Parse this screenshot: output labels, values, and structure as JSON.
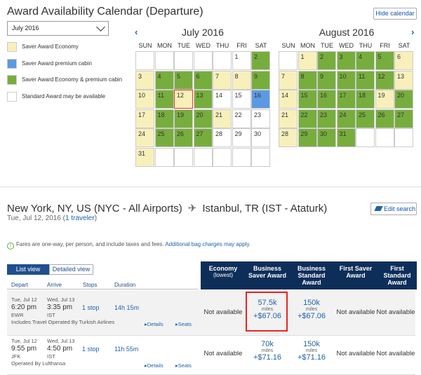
{
  "calendar": {
    "title": "Award Availability Calendar (Departure)",
    "hide_label": "Hide calendar",
    "month_select": "July 2016",
    "legend": [
      {
        "label": "Saver Award Economy",
        "color": "#f8f0bb"
      },
      {
        "label": "Saver Award premium cabin",
        "color": "#5b9ae3"
      },
      {
        "label": "Saver Award Economy & premium cabin",
        "color": "#77ad3d"
      },
      {
        "label": "Standard Award may be available",
        "color": "#ffffff"
      }
    ],
    "weekdays": [
      "SUN",
      "MON",
      "TUE",
      "WED",
      "THU",
      "FRI",
      "SAT"
    ],
    "months": [
      {
        "title": "July 2016",
        "start_offset": 5,
        "days": 31,
        "selected": 12,
        "status": {
          "1": "none",
          "2": "both",
          "3": "saver",
          "4": "both",
          "5": "both",
          "6": "both",
          "7": "saver",
          "8": "saver",
          "9": "both",
          "10": "saver",
          "11": "both",
          "12": "saver",
          "13": "both",
          "14": "none",
          "15": "none",
          "16": "premium",
          "17": "saver",
          "18": "both",
          "19": "both",
          "20": "both",
          "21": "saver",
          "22": "none",
          "23": "none",
          "24": "saver",
          "25": "both",
          "26": "both",
          "27": "both",
          "28": "none",
          "29": "none",
          "30": "none",
          "31": "saver"
        }
      },
      {
        "title": "August 2016",
        "start_offset": 1,
        "days": 31,
        "status": {
          "1": "saver",
          "2": "both",
          "3": "both",
          "4": "both",
          "5": "both",
          "6": "saver",
          "7": "saver",
          "8": "both",
          "9": "both",
          "10": "both",
          "11": "both",
          "12": "both",
          "13": "saver",
          "14": "saver",
          "15": "both",
          "16": "both",
          "17": "both",
          "18": "both",
          "19": "saver",
          "20": "both",
          "21": "saver",
          "22": "both",
          "23": "both",
          "24": "both",
          "25": "both",
          "26": "both",
          "27": "both",
          "28": "saver",
          "29": "both",
          "30": "both",
          "31": "both"
        }
      }
    ]
  },
  "search": {
    "from": "New York, NY, US (NYC - All Airports)",
    "to": "Istanbul, TR (IST - Ataturk)",
    "date": "Tue, Jul 12, 2016 (",
    "travelers": "1 traveler",
    "close_paren": ")",
    "edit_label": "Edit search"
  },
  "info": {
    "text": "Fares are one-way, per person, and include taxes and fees.",
    "link": "Additional bag charges may apply."
  },
  "tabs": {
    "list": "List view",
    "detail": "Detailed view"
  },
  "columns": {
    "depart": "Depart",
    "arrive": "Arrive",
    "stops": "Stops",
    "duration": "Duration"
  },
  "fare_headers": [
    {
      "title": "Economy",
      "sub": "(lowest)"
    },
    {
      "title": "Business Saver Award",
      "sub": ""
    },
    {
      "title": "Business Standard Award",
      "sub": ""
    },
    {
      "title": "First Saver Award",
      "sub": ""
    },
    {
      "title": "First Standard Award",
      "sub": ""
    }
  ],
  "flights": [
    {
      "dep_day": "Tue, Jul 12",
      "dep_time": "6:20 pm",
      "dep_code": "EWR",
      "arr_day": "Wed, Jul 13",
      "arr_time": "3:35 pm",
      "arr_code": "IST",
      "stops": "1 stop",
      "duration": "14h 15m",
      "operated": "Includes Travel Operated By Turkish Airlines",
      "details": "Details",
      "seats": "Seats",
      "economy": "Not available",
      "bsaver_miles": "57.5k",
      "bsaver_tax": "+$67.06",
      "bstd_miles": "150k",
      "bstd_tax": "+$67.06",
      "fsaver": "Not available",
      "fstd": "Not available"
    },
    {
      "dep_day": "Tue, Jul 12",
      "dep_time": "9:55 pm",
      "dep_code": "JFK",
      "arr_day": "Wed, Jul 13",
      "arr_time": "4:50 pm",
      "arr_code": "IST",
      "stops": "1 stop",
      "duration": "11h 55m",
      "operated": "Operated By Lufthansa",
      "details": "Details",
      "seats": "Seats",
      "economy": "Not available",
      "bsaver_miles": "70k",
      "bsaver_tax": "+$71.16",
      "bstd_miles": "150k",
      "bstd_tax": "+$71.16",
      "fsaver": "Not available",
      "fstd": "Not available"
    }
  ],
  "miles_label": "miles"
}
